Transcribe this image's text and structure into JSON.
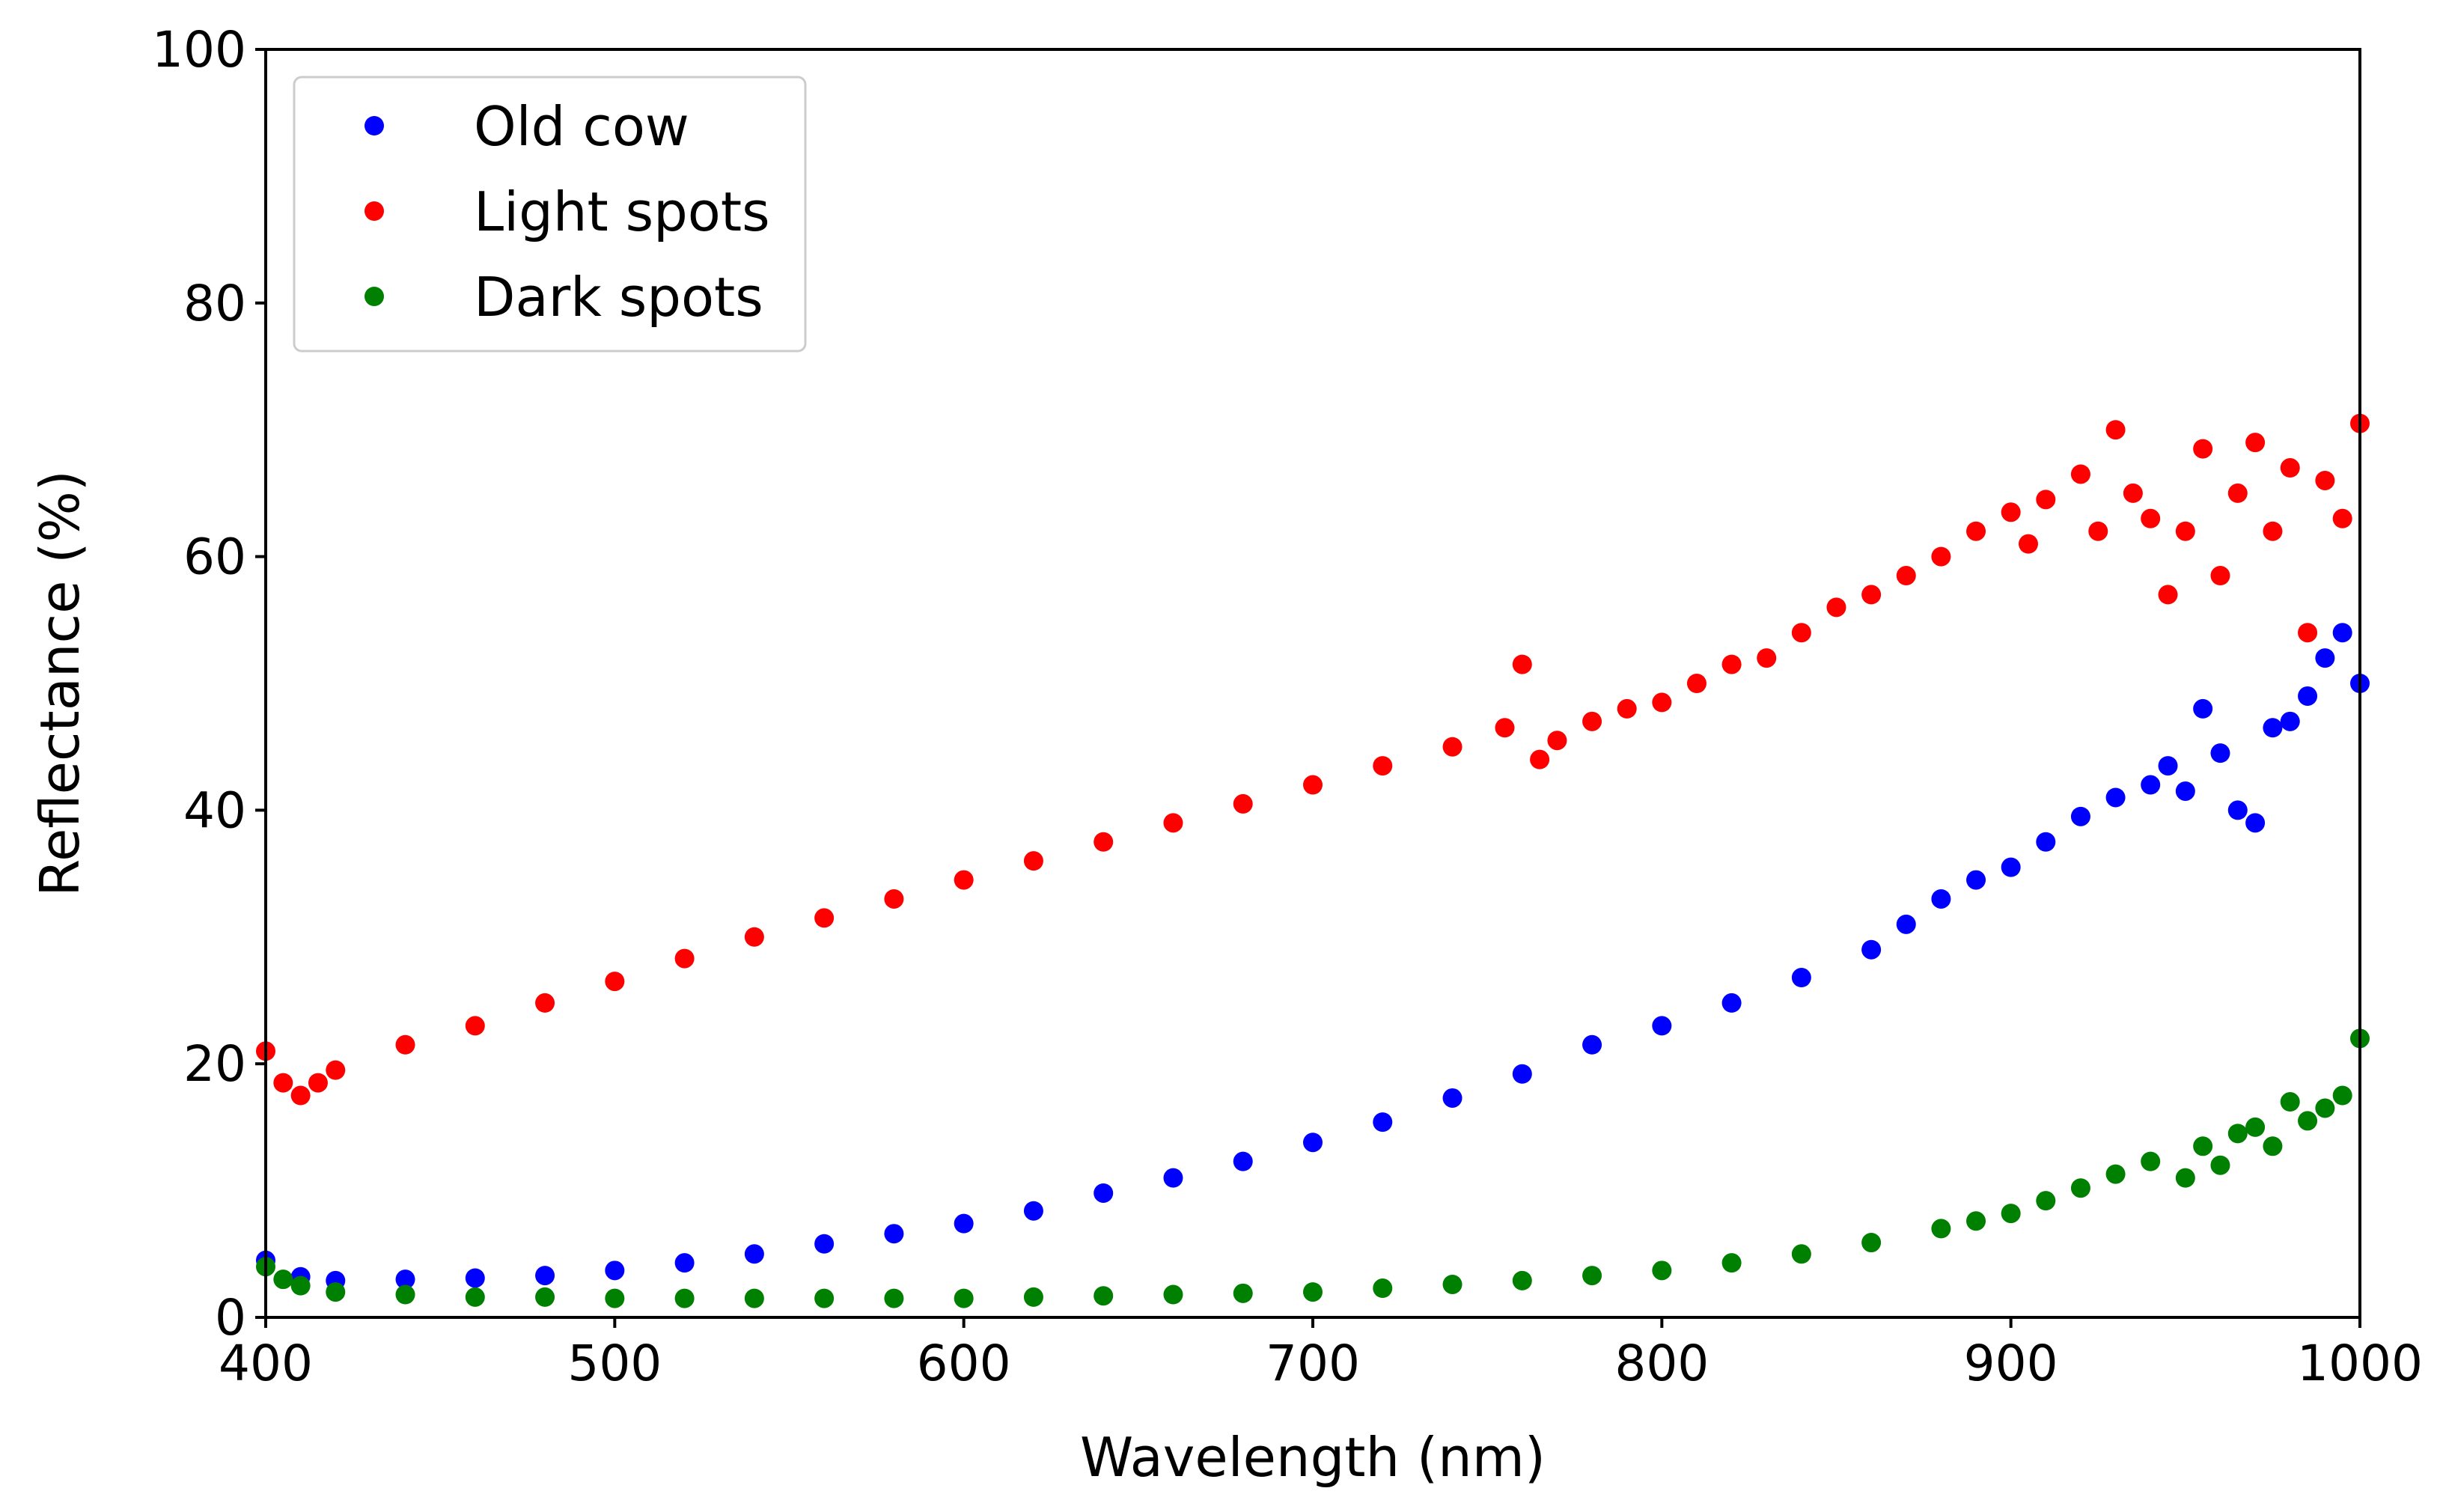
{
  "chart_data": {
    "type": "scatter",
    "title": "",
    "xlabel": "Wavelength (nm)",
    "ylabel": "Reflectance (%)",
    "xlim": [
      400,
      1000
    ],
    "ylim": [
      0,
      100
    ],
    "xticks": [
      400,
      500,
      600,
      700,
      800,
      900,
      1000
    ],
    "yticks": [
      0,
      20,
      40,
      60,
      80,
      100
    ],
    "grid": false,
    "legend_position": "top-left",
    "series": [
      {
        "name": "Old cow",
        "color": "#0000ff",
        "x": [
          400,
          410,
          420,
          440,
          460,
          480,
          500,
          520,
          540,
          560,
          580,
          600,
          620,
          640,
          660,
          680,
          700,
          720,
          740,
          760,
          780,
          800,
          820,
          840,
          860,
          870,
          880,
          890,
          900,
          910,
          920,
          930,
          940,
          945,
          950,
          955,
          960,
          965,
          970,
          975,
          980,
          985,
          990,
          995,
          1000
        ],
        "values": [
          4.5,
          3.2,
          2.9,
          3.0,
          3.1,
          3.3,
          3.7,
          4.3,
          5.0,
          5.8,
          6.6,
          7.4,
          8.4,
          9.8,
          11.0,
          12.3,
          13.8,
          15.4,
          17.3,
          19.2,
          21.5,
          23.0,
          24.8,
          26.8,
          29.0,
          31.0,
          33.0,
          34.5,
          35.5,
          37.5,
          39.5,
          41.0,
          42.0,
          43.5,
          41.5,
          48.0,
          44.5,
          40.0,
          39.0,
          46.5,
          47.0,
          49.0,
          52.0,
          54.0,
          50.0
        ]
      },
      {
        "name": "Light spots",
        "color": "#ff0000",
        "x": [
          400,
          405,
          410,
          415,
          420,
          440,
          460,
          480,
          500,
          520,
          540,
          560,
          580,
          600,
          620,
          640,
          660,
          680,
          700,
          720,
          740,
          755,
          760,
          765,
          770,
          780,
          790,
          800,
          810,
          820,
          830,
          840,
          850,
          860,
          870,
          880,
          890,
          900,
          905,
          910,
          920,
          925,
          930,
          935,
          940,
          945,
          950,
          955,
          960,
          965,
          970,
          975,
          980,
          985,
          990,
          995,
          1000
        ],
        "values": [
          21.0,
          18.5,
          17.5,
          18.5,
          19.5,
          21.5,
          23.0,
          24.8,
          26.5,
          28.3,
          30.0,
          31.5,
          33.0,
          34.5,
          36.0,
          37.5,
          39.0,
          40.5,
          42.0,
          43.5,
          45.0,
          46.5,
          51.5,
          44.0,
          45.5,
          47.0,
          48.0,
          48.5,
          50.0,
          51.5,
          52.0,
          54.0,
          56.0,
          57.0,
          58.5,
          60.0,
          62.0,
          63.5,
          61.0,
          64.5,
          66.5,
          62.0,
          70.0,
          65.0,
          63.0,
          57.0,
          62.0,
          68.5,
          58.5,
          65.0,
          69.0,
          62.0,
          67.0,
          54.0,
          66.0,
          63.0,
          70.5
        ]
      },
      {
        "name": "Dark spots",
        "color": "#008000",
        "x": [
          400,
          405,
          410,
          420,
          440,
          460,
          480,
          500,
          520,
          540,
          560,
          580,
          600,
          620,
          640,
          660,
          680,
          700,
          720,
          740,
          760,
          780,
          800,
          820,
          840,
          860,
          880,
          890,
          900,
          910,
          920,
          930,
          940,
          950,
          955,
          960,
          965,
          970,
          975,
          980,
          985,
          990,
          995,
          1000
        ],
        "values": [
          4.0,
          3.0,
          2.5,
          2.0,
          1.8,
          1.6,
          1.6,
          1.5,
          1.5,
          1.5,
          1.5,
          1.5,
          1.5,
          1.6,
          1.7,
          1.8,
          1.9,
          2.0,
          2.3,
          2.6,
          2.9,
          3.3,
          3.7,
          4.3,
          5.0,
          5.9,
          7.0,
          7.6,
          8.2,
          9.2,
          10.2,
          11.3,
          12.3,
          11.0,
          13.5,
          12.0,
          14.5,
          15.0,
          13.5,
          17.0,
          15.5,
          16.5,
          17.5,
          22.0
        ]
      }
    ]
  }
}
